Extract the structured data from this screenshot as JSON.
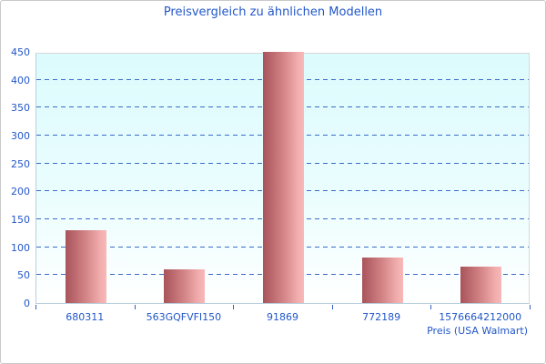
{
  "window": {
    "background": "#ffffff",
    "border_color": "#c9c9c9"
  },
  "chart_data": {
    "type": "bar",
    "title": "Preisvergleich zu ähnlichen Modellen",
    "categories": [
      "680311",
      "563GQFVFI150",
      "91869",
      "772189",
      "1576664212000"
    ],
    "values": [
      130,
      60,
      450,
      82,
      65
    ],
    "xlabel": "Preis (USA Walmart)",
    "ylabel": "",
    "ylim": [
      0,
      450
    ],
    "ytick_step": 50,
    "yticks": [
      0,
      50,
      100,
      150,
      200,
      250,
      300,
      350,
      400,
      450
    ],
    "grid": "horizontal-dashed",
    "legend": "none",
    "colors": {
      "title_text": "#2257c9",
      "tick_text": "#2257c9",
      "gridline": "#3a6cc8",
      "bar_gradient_left": "#a8545a",
      "bar_gradient_mid": "#cf7f82",
      "bar_gradient_right": "#f7b9b9",
      "plot_bg_top": "#dcfbfd",
      "plot_bg_bottom": "#ffffff",
      "axis_line": "#b9cfdd",
      "plot_border": "#d8d8d8"
    }
  }
}
